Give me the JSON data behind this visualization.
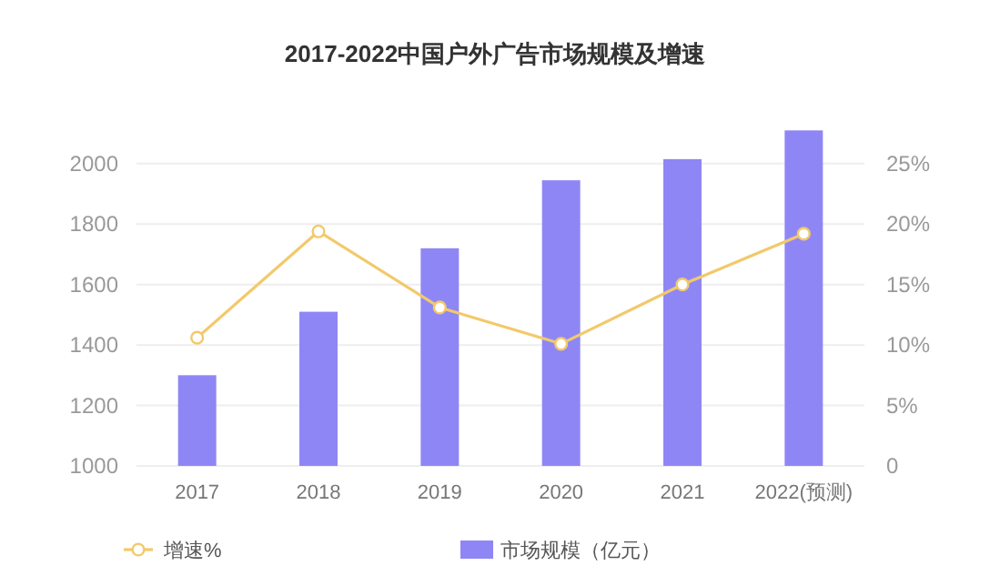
{
  "chart_data": {
    "type": "bar",
    "title": "2017-2022中国户外广告市场规模及增速",
    "categories": [
      "2017",
      "2018",
      "2019",
      "2020",
      "2021",
      "2022(预测)"
    ],
    "series": [
      {
        "name": "增速%",
        "type": "line",
        "axis": "y2",
        "color": "#f2c96b",
        "values": [
          10.6,
          19.4,
          13.1,
          10.1,
          15.0,
          19.2
        ]
      },
      {
        "name": "市场规模（亿元）",
        "color": "#8f86f6",
        "values": [
          1300,
          1510,
          1720,
          1945,
          2015,
          2110
        ]
      }
    ],
    "ylim": [
      1000,
      2120
    ],
    "yticks": [
      1000,
      1200,
      1400,
      1600,
      1800,
      2000
    ],
    "y2lim": [
      0,
      28
    ],
    "y2ticks": [
      0,
      {
        "value": 5,
        "label": "5%"
      },
      {
        "value": 10,
        "label": "10%"
      },
      {
        "value": 15,
        "label": "15%"
      },
      {
        "value": 20,
        "label": "20%"
      },
      {
        "value": 25,
        "label": "25%"
      }
    ],
    "grid": "y",
    "legend": "bottom",
    "marker": "circle"
  }
}
